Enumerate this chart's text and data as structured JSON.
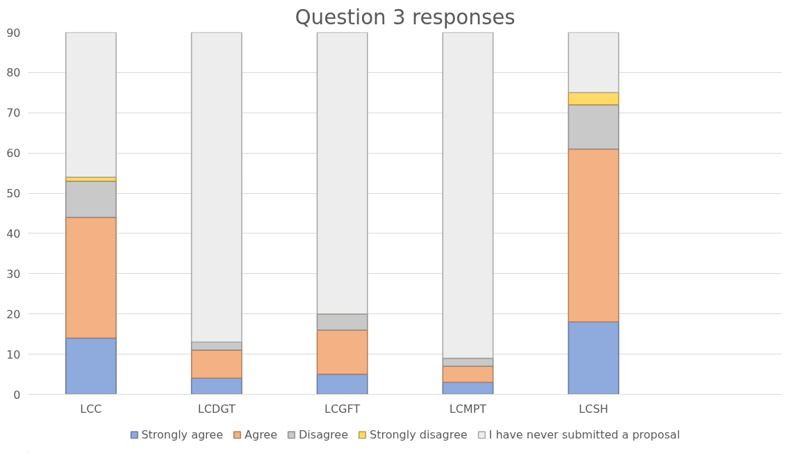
{
  "chart_data": {
    "type": "bar",
    "title": "Question 3 responses",
    "stacked": true,
    "categories": [
      "LCC",
      "LCDGT",
      "LCGFT",
      "LCMPT",
      "LCSH",
      null
    ],
    "series": [
      {
        "name": "Strongly agree",
        "color": "#8faadc",
        "values": [
          14,
          4,
          5,
          3,
          18,
          null
        ]
      },
      {
        "name": "Agree",
        "color": "#f4b183",
        "values": [
          30,
          7,
          11,
          4,
          43,
          null
        ]
      },
      {
        "name": "Disagree",
        "color": "#c9c9c9",
        "values": [
          9,
          2,
          4,
          2,
          11,
          null
        ]
      },
      {
        "name": "Strongly disagree",
        "color": "#ffd966",
        "values": [
          1,
          0,
          0,
          0,
          3,
          null
        ]
      },
      {
        "name": "I have never submitted a proposal",
        "color": "#ededed",
        "values": [
          36,
          77,
          70,
          81,
          15,
          null
        ]
      }
    ],
    "ylim": [
      0,
      90
    ],
    "yticks": [
      0,
      10,
      20,
      30,
      40,
      50,
      60,
      70,
      80,
      90
    ],
    "grid": "y",
    "legend": "bottom"
  }
}
